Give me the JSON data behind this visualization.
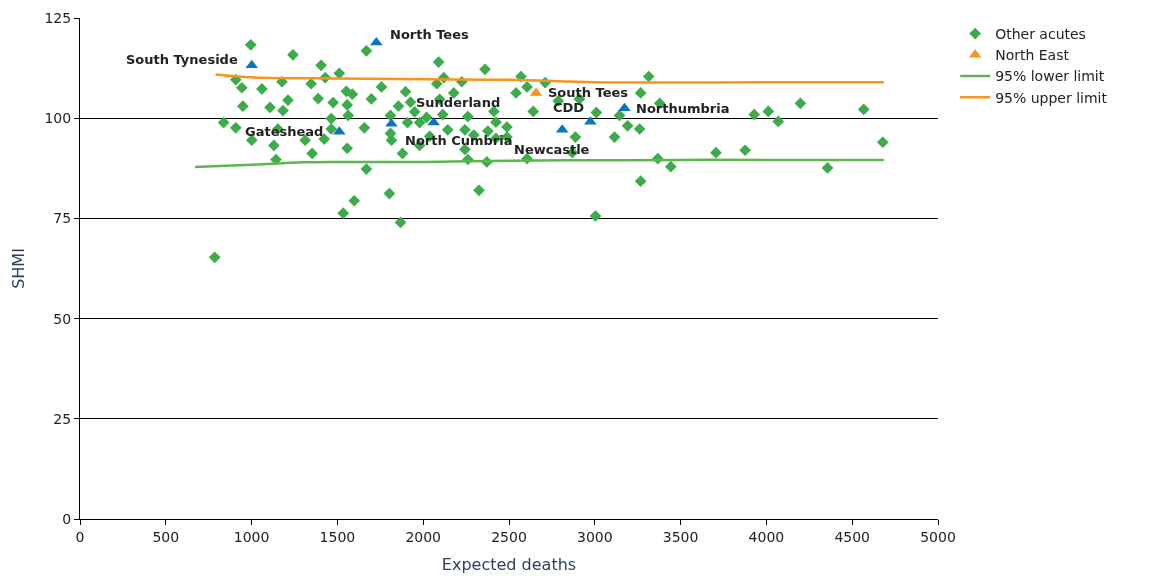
{
  "chart_data": {
    "type": "scatter",
    "xlabel": "Expected deaths",
    "ylabel": "SHMI",
    "xlim": [
      0,
      5000
    ],
    "xticks": [
      0,
      500,
      1000,
      1500,
      2000,
      2500,
      3000,
      3500,
      4000,
      4500,
      5000
    ],
    "ylim": [
      0,
      125
    ],
    "yticks": [
      0,
      25,
      50,
      75,
      100,
      125
    ],
    "grid": "y",
    "legend": "top right",
    "series": [
      {
        "name": "Other acutes",
        "marker": "diamond",
        "color": "#3cab4a",
        "x": [
          995,
          1241,
          1405,
          1669,
          2090,
          2360,
          908,
          943,
          1060,
          1177,
          1347,
          1429,
          1511,
          1552,
          1587,
          1757,
          1897,
          2079,
          2120,
          2225,
          2178,
          949,
          1107,
          1183,
          1212,
          1388,
          1475,
          1557,
          1563,
          1698,
          1926,
          2096,
          1950,
          1856,
          1809,
          2114,
          2260,
          2412,
          837,
          908,
          1001,
          1130,
          1142,
          1153,
          1312,
          1353,
          1423,
          1464,
          1464,
          1557,
          1657,
          1669,
          1803,
          1598,
          1534,
          1868,
          1815,
          1909,
          1879,
          1979,
          1979,
          2038,
          2143,
          2243,
          2243,
          2260,
          2295,
          2325,
          2371,
          2377,
          2424,
          2424,
          2488,
          2488,
          2020,
          1809,
          2570,
          2605,
          2711,
          2541,
          2787,
          2910,
          2641,
          3009,
          3144,
          3191,
          2887,
          2869,
          3115,
          3261,
          3314,
          3267,
          3378,
          2605,
          3367,
          3443,
          3267,
          3004,
          3706,
          3876,
          3929,
          4011,
          4069,
          4198,
          4567,
          4678,
          4356,
          785
        ],
        "values": [
          118.3,
          115.8,
          113.2,
          116.8,
          114.0,
          112.2,
          109.6,
          107.6,
          107.3,
          109.1,
          108.6,
          110.1,
          111.2,
          106.7,
          106.0,
          107.8,
          106.6,
          108.6,
          110.1,
          109.1,
          106.3,
          103.0,
          102.7,
          101.9,
          104.5,
          104.9,
          103.9,
          103.3,
          100.7,
          104.8,
          104.0,
          104.7,
          101.6,
          103.0,
          100.7,
          100.9,
          100.4,
          101.7,
          98.9,
          97.6,
          94.5,
          93.2,
          89.7,
          97.3,
          94.5,
          91.2,
          94.8,
          99.9,
          97.3,
          92.5,
          97.6,
          87.3,
          81.2,
          79.4,
          76.3,
          74.0,
          94.5,
          98.9,
          91.2,
          98.9,
          93.2,
          95.5,
          97.1,
          97.1,
          92.2,
          89.7,
          95.8,
          82.0,
          89.1,
          96.8,
          99.0,
          95.0,
          97.8,
          95.3,
          100.2,
          96.2,
          110.4,
          107.8,
          108.9,
          106.3,
          104.3,
          104.8,
          101.7,
          101.4,
          100.7,
          98.1,
          95.3,
          91.4,
          95.3,
          97.3,
          110.4,
          106.3,
          103.7,
          89.9,
          89.9,
          87.9,
          84.3,
          75.6,
          91.4,
          92.0,
          100.9,
          101.7,
          99.2,
          103.7,
          102.2,
          94.0,
          87.6,
          65.3
        ]
      },
      {
        "name": "North East",
        "marker": "triangle",
        "colors": [
          "#f6961e",
          "#0a75c2",
          "#0a75c2",
          "#0a75c2",
          "#0a75c2",
          "#0a75c2",
          "#0a75c2",
          "#0a75c2",
          "#0a75c2"
        ],
        "x": [
          2658,
          1001,
          1727,
          1511,
          1815,
          2061,
          2810,
          2974,
          3173
        ],
        "values": [
          106.3,
          113.2,
          118.9,
          96.6,
          98.6,
          98.9,
          97.1,
          99.1,
          102.5
        ]
      },
      {
        "name": "95% lower limit",
        "type": "line",
        "marker": "none",
        "color": "#5bb84a",
        "x": [
          670,
          1000,
          1300,
          1500,
          2000,
          2500,
          3000,
          3500,
          4000,
          4684
        ],
        "values": [
          87.8,
          88.4,
          89.0,
          89.1,
          89.1,
          89.4,
          89.5,
          89.6,
          89.6,
          89.6
        ]
      },
      {
        "name": "95% upper limit",
        "type": "line",
        "marker": "none",
        "color": "#f7941d",
        "x": [
          790,
          1000,
          1500,
          2000,
          2500,
          3000,
          3500,
          4000,
          4684
        ],
        "values": [
          110.9,
          110.2,
          109.9,
          109.7,
          109.6,
          109.0,
          108.9,
          109.0,
          109.0
        ]
      }
    ],
    "annotations": [
      {
        "text": "South Tyneside",
        "x": 1001,
        "y": 113.2
      },
      {
        "text": "North Tees",
        "x": 1727,
        "y": 118.9
      },
      {
        "text": "Gateshead",
        "x": 1511,
        "y": 96.6
      },
      {
        "text": "North Cumbria",
        "x": 1815,
        "y": 98.6
      },
      {
        "text": "Sunderland",
        "x": 2061,
        "y": 98.9
      },
      {
        "text": "South Tees",
        "x": 2658,
        "y": 106.3
      },
      {
        "text": "Newcastle",
        "x": 2810,
        "y": 97.1
      },
      {
        "text": "CDD",
        "x": 2974,
        "y": 99.1
      },
      {
        "text": "Northumbria",
        "x": 3173,
        "y": 102.5
      }
    ]
  }
}
